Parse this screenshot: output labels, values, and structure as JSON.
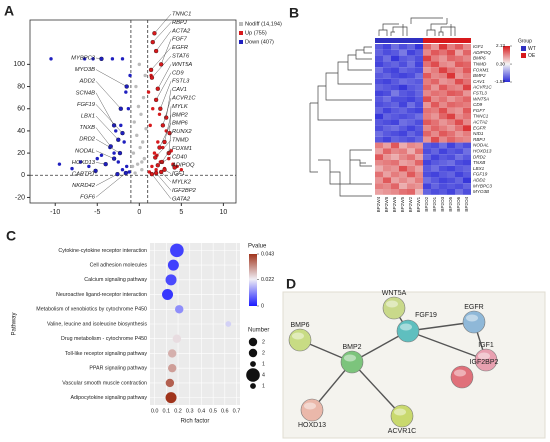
{
  "chart_data": [
    {
      "type": "scatter",
      "panel": "A",
      "xlim": [
        -13,
        11.5
      ],
      "ylim": [
        -25,
        140
      ],
      "xticks": [
        -10,
        -5,
        0,
        5,
        10
      ],
      "yticks": [
        -20,
        0,
        20,
        40,
        60,
        80,
        100
      ],
      "thresholds": {
        "x": [
          -1,
          1
        ],
        "y": 0
      },
      "series": [
        {
          "name": "Nodiff (14,194)",
          "color": "#bbbbbb",
          "x": [
            -0.5,
            0.3,
            -0.2,
            0.6,
            -0.7,
            0.1,
            0.4,
            -0.3,
            0.8,
            -0.6,
            0.2,
            -0.1,
            0.5,
            -0.4,
            0.7,
            0.0,
            -0.8,
            0.3
          ],
          "values": [
            2,
            5,
            10,
            15,
            20,
            25,
            30,
            36,
            42,
            48,
            55,
            62,
            70,
            80,
            90,
            100,
            8,
            12
          ]
        },
        {
          "name": "Up (755)",
          "color": "#d7191c",
          "x": [
            1.2,
            1.5,
            2.0,
            2.5,
            3.0,
            1.8,
            2.2,
            3.5,
            4.0,
            1.3,
            2.8,
            4.5,
            1.6,
            3.2,
            2.4,
            1.1,
            5.0,
            1.4,
            2.1,
            3.8
          ],
          "values": [
            3,
            8,
            5,
            12,
            6,
            20,
            30,
            15,
            10,
            45,
            25,
            8,
            60,
            40,
            55,
            75,
            5,
            90,
            18,
            22
          ]
        },
        {
          "name": "Down (407)",
          "color": "#1f1fbf",
          "x": [
            -1.2,
            -1.5,
            -2.0,
            -2.5,
            -3.0,
            -4.0,
            -5.0,
            -6.0,
            -1.8,
            -2.2,
            -3.5,
            -7.0,
            -8.0,
            -1.3,
            -2.8,
            -4.5,
            -1.6,
            -9.5,
            -3.2,
            -1.1,
            -6.5,
            -5.5,
            -2.0,
            -10.5
          ],
          "values": [
            3,
            8,
            5,
            12,
            20,
            10,
            15,
            8,
            30,
            45,
            25,
            12,
            6,
            60,
            40,
            18,
            75,
            10,
            105,
            90,
            105,
            105,
            105,
            105
          ]
        }
      ],
      "labels": [
        {
          "text": "TNNC1",
          "x": 1.8,
          "y": 128
        },
        {
          "text": "RBPJ",
          "x": 1.6,
          "y": 120
        },
        {
          "text": "ACTA2",
          "x": 2.0,
          "y": 112
        },
        {
          "text": "FGF7",
          "x": 2.6,
          "y": 100
        },
        {
          "text": "EGFR",
          "x": 1.4,
          "y": 95
        },
        {
          "text": "STAT6",
          "x": 1.5,
          "y": 88
        },
        {
          "text": "WNT5A",
          "x": 2.2,
          "y": 78
        },
        {
          "text": "CD9",
          "x": 2.0,
          "y": 68
        },
        {
          "text": "FSTL3",
          "x": 2.5,
          "y": 60
        },
        {
          "text": "CAV1",
          "x": 3.2,
          "y": 52
        },
        {
          "text": "ACVR1C",
          "x": 2.8,
          "y": 45
        },
        {
          "text": "MYLK",
          "x": 3.6,
          "y": 38
        },
        {
          "text": "BMP2",
          "x": 3.0,
          "y": 30
        },
        {
          "text": "BMP6",
          "x": 2.4,
          "y": 25
        },
        {
          "text": "RUNX2",
          "x": 3.5,
          "y": 20
        },
        {
          "text": "TNMD",
          "x": 1.9,
          "y": 16
        },
        {
          "text": "FOXM1",
          "x": 2.7,
          "y": 12
        },
        {
          "text": "CD40",
          "x": 2.2,
          "y": 9
        },
        {
          "text": "ADIPOQ",
          "x": 4.2,
          "y": 7
        },
        {
          "text": "IGF1",
          "x": 3.0,
          "y": 5
        },
        {
          "text": "MYLK2",
          "x": 2.6,
          "y": 3
        },
        {
          "text": "IGF2BP2",
          "x": 2.0,
          "y": 2
        },
        {
          "text": "GATA2",
          "x": 1.5,
          "y": 1
        },
        {
          "text": "MYBPC3",
          "x": -4.5,
          "y": 105
        },
        {
          "text": "MYO3B",
          "x": -1.5,
          "y": 80
        },
        {
          "text": "ADD2",
          "x": -2.2,
          "y": 60
        },
        {
          "text": "SCN4B",
          "x": -3.0,
          "y": 45
        },
        {
          "text": "FGF19",
          "x": -2.0,
          "y": 38
        },
        {
          "text": "LBX1",
          "x": -2.5,
          "y": 32
        },
        {
          "text": "TNXB",
          "x": -3.4,
          "y": 26
        },
        {
          "text": "DRD2",
          "x": -2.3,
          "y": 20
        },
        {
          "text": "NODAL",
          "x": -3.0,
          "y": 15
        },
        {
          "text": "HOXD13",
          "x": -4.0,
          "y": 10
        },
        {
          "text": "CARTPT",
          "x": -5.2,
          "y": 4
        },
        {
          "text": "NKRD42",
          "x": -2.6,
          "y": 1
        },
        {
          "text": "FGF6",
          "x": -1.6,
          "y": 2
        }
      ]
    },
    {
      "type": "heatmap",
      "panel": "B",
      "columns": [
        "BP2W4",
        "BP2W8",
        "BP2W6",
        "BP2W5",
        "BP2W2",
        "BP2W1",
        "BP2O2",
        "BP2O1",
        "BP2O3",
        "BP2O5",
        "BP2O6",
        "BP2O4"
      ],
      "rows": [
        "IGF1",
        "ADIPOQ",
        "BMP6",
        "TNMD",
        "FOXM1",
        "BMP2",
        "CAV1",
        "ACVR1C",
        "FSTL3",
        "WNT5A",
        "CD9",
        "FGF7",
        "TNNC1",
        "ACTA2",
        "EGFR",
        "NID1",
        "RBPJ",
        "NODAL",
        "HOXD13",
        "DRD2",
        "TNXB",
        "LBX1",
        "FGF19",
        "ADD2",
        "MYBPC3",
        "MYO3B"
      ],
      "values": [
        [
          -1.1,
          -1.3,
          -0.9,
          -1.2,
          -1.0,
          -1.4,
          1.5,
          1.1,
          1.9,
          1.3,
          1.6,
          1.2
        ],
        [
          -1.0,
          -1.2,
          -1.1,
          -0.8,
          -1.3,
          -1.1,
          1.2,
          1.6,
          1.4,
          1.7,
          1.0,
          1.5
        ],
        [
          -1.2,
          -0.9,
          -1.4,
          -1.1,
          -1.0,
          -1.2,
          1.8,
          1.3,
          1.1,
          1.5,
          1.4,
          1.2
        ],
        [
          -1.3,
          -1.1,
          -1.0,
          -1.2,
          -0.9,
          -1.3,
          1.4,
          1.7,
          1.2,
          1.1,
          1.6,
          1.5
        ],
        [
          -0.9,
          -1.2,
          -1.3,
          -1.0,
          -1.1,
          -1.2,
          1.1,
          1.3,
          1.8,
          1.4,
          1.2,
          1.6
        ],
        [
          -1.1,
          -1.0,
          -1.2,
          -1.3,
          -1.2,
          -0.9,
          1.6,
          1.2,
          1.3,
          1.9,
          1.1,
          1.3
        ],
        [
          -1.2,
          -1.3,
          -1.1,
          -0.9,
          -1.0,
          -1.1,
          1.3,
          1.5,
          1.1,
          1.2,
          1.7,
          1.4
        ],
        [
          -1.0,
          -1.1,
          -1.2,
          -1.4,
          -1.1,
          -1.0,
          1.5,
          1.1,
          1.6,
          1.3,
          1.2,
          1.8
        ],
        [
          -1.3,
          -1.2,
          -0.8,
          -1.1,
          -1.2,
          -1.0,
          1.2,
          1.4,
          1.3,
          1.6,
          1.5,
          1.1
        ],
        [
          -1.1,
          -0.9,
          -1.2,
          -1.2,
          -1.3,
          -1.1,
          1.7,
          1.2,
          1.4,
          1.1,
          1.3,
          1.5
        ],
        [
          -1.2,
          -1.1,
          -1.0,
          -1.3,
          -0.9,
          -1.2,
          1.1,
          1.6,
          1.2,
          1.5,
          1.4,
          1.3
        ],
        [
          -1.0,
          -1.3,
          -1.1,
          -1.0,
          -1.2,
          -1.3,
          1.4,
          1.3,
          1.7,
          1.2,
          1.1,
          1.6
        ],
        [
          -1.4,
          -1.0,
          -1.1,
          -1.2,
          -1.1,
          -0.9,
          1.3,
          1.1,
          1.5,
          1.8,
          1.2,
          1.4
        ],
        [
          -1.1,
          -1.2,
          -1.3,
          -0.9,
          -1.0,
          -1.2,
          1.6,
          1.4,
          1.1,
          1.3,
          1.7,
          1.2
        ],
        [
          -1.2,
          -1.0,
          -0.9,
          -1.1,
          -1.3,
          -1.1,
          1.2,
          1.5,
          1.3,
          1.1,
          1.4,
          1.9
        ],
        [
          -0.9,
          -1.1,
          -1.2,
          -1.3,
          -1.0,
          -1.2,
          1.5,
          1.2,
          1.6,
          1.4,
          1.1,
          1.3
        ],
        [
          -1.1,
          -1.3,
          -1.0,
          -1.1,
          -1.2,
          -1.0,
          1.1,
          1.7,
          1.2,
          1.5,
          1.3,
          1.2
        ],
        [
          1.3,
          1.0,
          1.6,
          0.9,
          1.2,
          1.1,
          -1.1,
          -1.2,
          -0.9,
          -1.3,
          -1.0,
          -1.2
        ],
        [
          1.0,
          1.5,
          1.2,
          1.3,
          0.9,
          1.4,
          -1.2,
          -1.0,
          -1.3,
          -1.1,
          -1.2,
          -0.9
        ],
        [
          1.6,
          1.1,
          0.9,
          1.2,
          1.4,
          1.0,
          -1.0,
          -1.3,
          -1.1,
          -1.2,
          -0.9,
          -1.1
        ],
        [
          1.2,
          1.3,
          1.4,
          1.0,
          1.1,
          1.5,
          -1.3,
          -1.1,
          -1.0,
          -0.9,
          -1.2,
          -1.3
        ],
        [
          0.9,
          1.2,
          1.1,
          1.7,
          1.3,
          1.0,
          -1.1,
          -0.9,
          -1.2,
          -1.3,
          -1.1,
          -1.0
        ],
        [
          1.4,
          1.0,
          1.3,
          1.1,
          1.6,
          1.2,
          -1.2,
          -1.3,
          -1.1,
          -1.0,
          -1.3,
          -1.1
        ],
        [
          1.1,
          1.6,
          1.0,
          1.2,
          1.0,
          1.3,
          -0.9,
          -1.1,
          -1.3,
          -1.2,
          -1.0,
          -1.4
        ],
        [
          1.3,
          1.2,
          1.5,
          0.9,
          1.2,
          1.1,
          -1.3,
          -1.0,
          -1.2,
          -1.1,
          -1.2,
          -1.0
        ],
        [
          1.0,
          1.1,
          1.2,
          1.4,
          1.5,
          0.8,
          -1.0,
          -1.2,
          -1.1,
          -1.3,
          -0.9,
          -1.2
        ]
      ],
      "clim": [
        -1.52,
        2.13
      ],
      "cticks": [
        2.13,
        {
          "value": 0.3,
          "label": "0.30"
        },
        -1.52
      ],
      "colors": [
        "#2a2ad8",
        "#f5f5f5",
        "#d7191c"
      ],
      "group_title": "Group",
      "groups": [
        {
          "name": "WT",
          "color": "#3030c0",
          "count": 6
        },
        {
          "name": "OE",
          "color": "#d7191c",
          "count": 6
        }
      ]
    },
    {
      "type": "dot",
      "panel": "C",
      "xlabel": "Rich factor",
      "ylabel": "Pathway",
      "categories": [
        "Cytokine-cytokine receptor interaction",
        "Cell adhesion molecules",
        "Calcium signaling pathway",
        "Neuroactive ligand-receptor interaction",
        "Metabolism of xenobiotics by cytochrome P450",
        "Valine, leucine and isoleucine biosynthesis",
        "Drug metabolism - cytochrome P450",
        "Toll-like receptor signaling pathway",
        "PPAR signaling pathway",
        "Vascular smooth muscle contraction",
        "Adipocytokine signaling pathway"
      ],
      "values": [
        0.19,
        0.16,
        0.14,
        0.11,
        0.21,
        0.63,
        0.19,
        0.15,
        0.15,
        0.13,
        0.14
      ],
      "pvalues": [
        0.004,
        0.004,
        0.005,
        0.003,
        0.012,
        0.019,
        0.024,
        0.029,
        0.031,
        0.038,
        0.043
      ],
      "sizes": [
        4,
        3,
        3,
        3,
        2,
        1,
        2,
        2,
        2,
        2,
        3
      ],
      "xlim": [
        -0.04,
        0.73
      ],
      "xticks": [
        {
          "value": 0,
          "label": "0.0"
        },
        0.1,
        0.2,
        0.3,
        0.4,
        0.5,
        0.6,
        0.7
      ],
      "color_title": "Pvalue",
      "clim": [
        0,
        0.043
      ],
      "cticks": [
        0.043,
        0.022,
        0
      ],
      "colors": [
        "#1a1aff",
        "#f0eef5",
        "#a0341c"
      ],
      "size_title": "Number",
      "size_legend": [
        2,
        2,
        1,
        4,
        1
      ]
    },
    {
      "type": "network",
      "panel": "D",
      "nodes": [
        {
          "label": "WNT5A",
          "color": "#c9d98a"
        },
        {
          "label": "EGFR",
          "color": "#8fb8d8"
        },
        {
          "label": "FGF19",
          "color": "#5fbfbf"
        },
        {
          "label": "IGF1",
          "color": "#e8a0b0"
        },
        {
          "label": "BMP6",
          "color": "#c8dc84"
        },
        {
          "label": "BMP2",
          "color": "#7cc47c"
        },
        {
          "label": "IGF2BP2",
          "color": "#e0707a"
        },
        {
          "label": "HOXD13",
          "color": "#eab8aa"
        },
        {
          "label": "ACVR1C",
          "color": "#c9d96e"
        }
      ],
      "edges": [
        [
          "WNT5A",
          "FGF19"
        ],
        [
          "EGFR",
          "FGF19"
        ],
        [
          "EGFR",
          "IGF1"
        ],
        [
          "FGF19",
          "IGF1"
        ],
        [
          "FGF19",
          "BMP2"
        ],
        [
          "BMP6",
          "BMP2"
        ],
        [
          "BMP2",
          "HOXD13"
        ],
        [
          "BMP2",
          "ACVR1C"
        ]
      ]
    }
  ]
}
